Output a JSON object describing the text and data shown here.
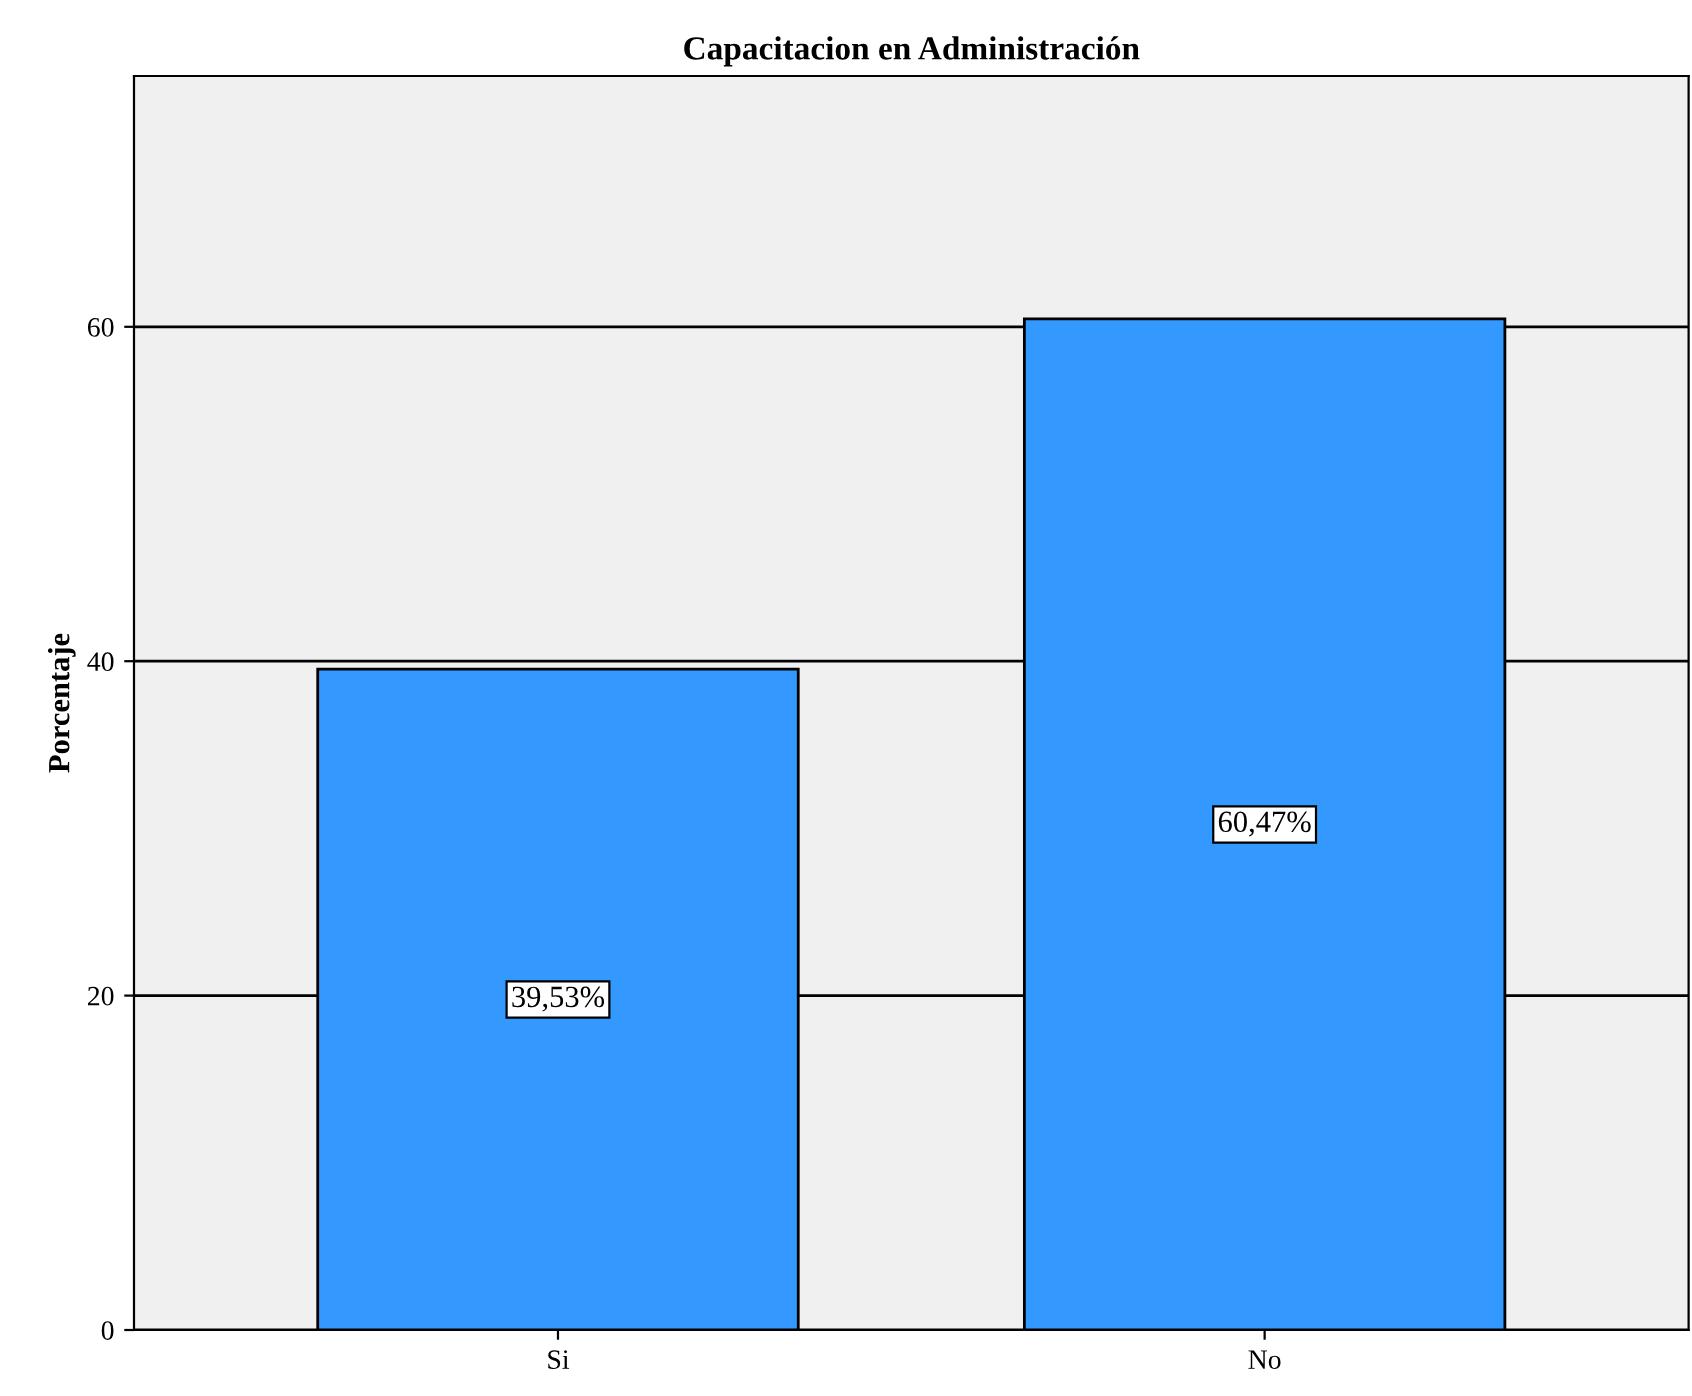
{
  "chart_data": {
    "type": "bar",
    "title": "Capacitacion en Administración",
    "ylabel": "Porcentaje",
    "categories": [
      "Si",
      "No"
    ],
    "values": [
      39.53,
      60.47
    ],
    "value_labels": [
      "39,53%",
      "60,47%"
    ],
    "color": "#3399ff",
    "ylim": [
      0,
      75
    ],
    "yticks": [
      0,
      20,
      40,
      60
    ],
    "grid": "y"
  }
}
